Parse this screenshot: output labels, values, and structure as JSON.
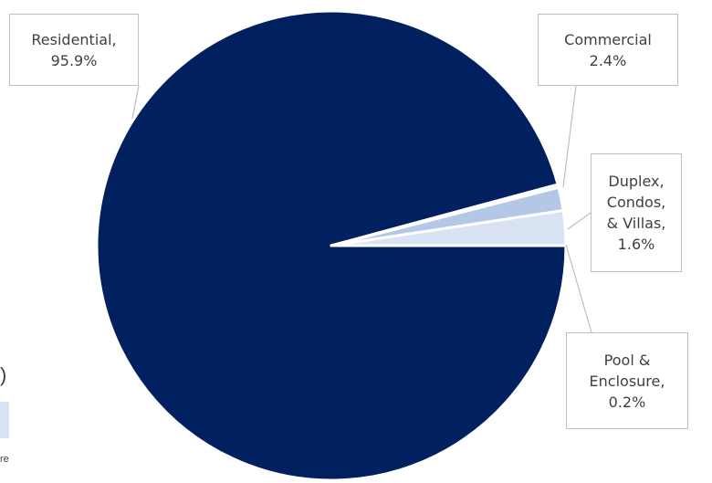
{
  "chart_data": {
    "type": "pie",
    "title": "",
    "slices": [
      {
        "label": "Residential",
        "value": 95.9,
        "label_text": "Residential,\n95.9%",
        "color": "#002060"
      },
      {
        "label": "Commercial",
        "value": 2.4,
        "label_text": "Commercial\n2.4%",
        "color": "#dae3f3"
      },
      {
        "label": "Duplex, Condos, & Villas",
        "value": 1.6,
        "label_text": "Duplex,\nCondos,\n& Villas,\n1.6%",
        "color": "#b4c7e7"
      },
      {
        "label": "Pool & Enclosure",
        "value": 0.2,
        "label_text": "Pool &\nEnclosure,\n0.2%",
        "color": "#8faadc"
      }
    ],
    "slice_border": "#ffffff",
    "leader_color": "#bfbfbf",
    "label_box_border": "#bfbfbf",
    "data_label_color": "#404040"
  },
  "background_fragments": {
    "paren": ")",
    "tail_text": "re"
  }
}
